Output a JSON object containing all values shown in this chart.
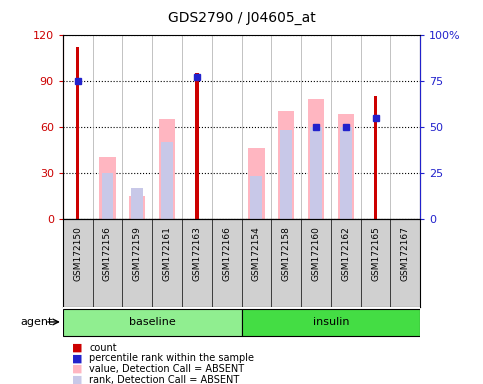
{
  "title": "GDS2790 / J04605_at",
  "samples": [
    "GSM172150",
    "GSM172156",
    "GSM172159",
    "GSM172161",
    "GSM172163",
    "GSM172166",
    "GSM172154",
    "GSM172158",
    "GSM172160",
    "GSM172162",
    "GSM172165",
    "GSM172167"
  ],
  "count_values": [
    112,
    0,
    0,
    0,
    95,
    0,
    0,
    0,
    0,
    0,
    80,
    0
  ],
  "percentile_values": [
    75,
    0,
    0,
    0,
    77,
    0,
    0,
    0,
    50,
    50,
    55,
    0
  ],
  "absent_value_vals": [
    0,
    40,
    15,
    65,
    0,
    0,
    46,
    70,
    78,
    68,
    0,
    0
  ],
  "absent_rank_vals": [
    0,
    30,
    20,
    50,
    0,
    0,
    28,
    58,
    60,
    60,
    0,
    0
  ],
  "count_color": "#CC0000",
  "percentile_color": "#2222CC",
  "absent_value_color": "#FFB6C1",
  "absent_rank_color": "#C8C8E8",
  "ylim_left": [
    0,
    120
  ],
  "ylim_right": [
    0,
    100
  ],
  "yticks_left": [
    0,
    30,
    60,
    90,
    120
  ],
  "yticks_left_labels": [
    "0",
    "30",
    "60",
    "90",
    "120"
  ],
  "yticks_right": [
    0,
    25,
    50,
    75,
    100
  ],
  "yticks_right_labels": [
    "0",
    "25",
    "50",
    "75",
    "100%"
  ],
  "baseline_color": "#90EE90",
  "insulin_color": "#44DD44",
  "baseline_samples": 6,
  "insulin_samples": 6
}
